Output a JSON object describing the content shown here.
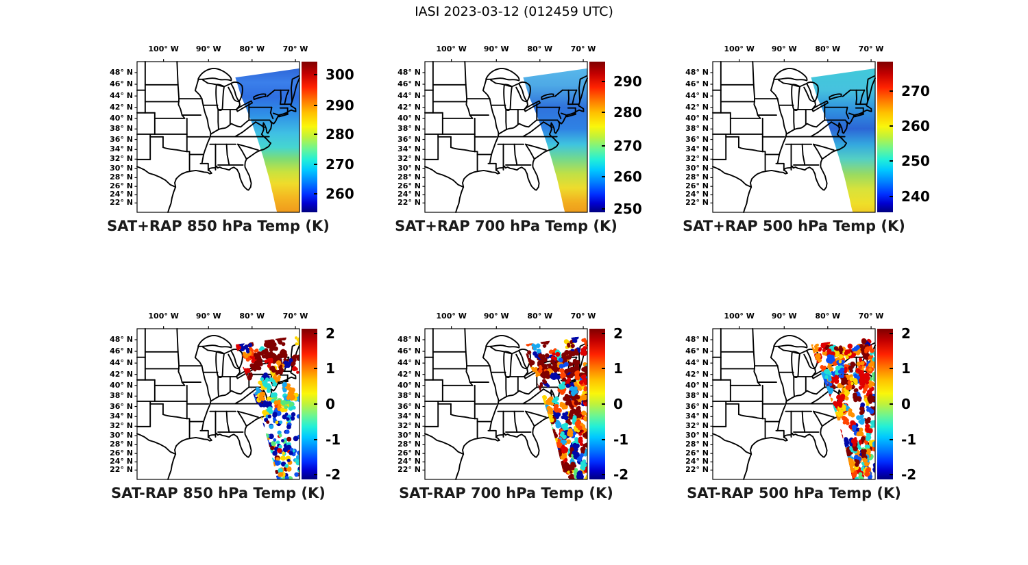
{
  "figure": {
    "title": "IASI 2023-03-12 (012459 UTC)",
    "background": "#ffffff"
  },
  "axes": {
    "lon_labels": [
      "100° W",
      "90° W",
      "80° W",
      "70° W"
    ],
    "lon_fracs": [
      0.163,
      0.44,
      0.708,
      0.975
    ],
    "lat_labels": [
      "48° N",
      "46° N",
      "44° N",
      "42° N",
      "40° N",
      "38° N",
      "36° N",
      "34° N",
      "32° N",
      "30° N",
      "28° N",
      "26° N",
      "24° N",
      "22° N"
    ],
    "lat_fracs": [
      0.073,
      0.15,
      0.228,
      0.303,
      0.376,
      0.447,
      0.516,
      0.583,
      0.647,
      0.71,
      0.77,
      0.828,
      0.884,
      0.938
    ]
  },
  "panels": [
    {
      "title": "SAT+RAP 850 hPa Temp (K)",
      "kind": "swath",
      "row": 0,
      "col": 0,
      "cb_ticks": [
        "300",
        "290",
        "280",
        "270",
        "260"
      ],
      "cb_fracs": [
        0.085,
        0.29,
        0.48,
        0.68,
        0.875
      ],
      "gradient": [
        [
          0,
          "#2E66D8"
        ],
        [
          0.1,
          "#3B7FEA"
        ],
        [
          0.2,
          "#2F6FE2"
        ],
        [
          0.32,
          "#2F8FE6"
        ],
        [
          0.45,
          "#3FBFE4"
        ],
        [
          0.55,
          "#46D6CF"
        ],
        [
          0.63,
          "#7FDC74"
        ],
        [
          0.72,
          "#C9E23E"
        ],
        [
          0.8,
          "#F0DC2B"
        ],
        [
          0.9,
          "#F4B621"
        ],
        [
          1,
          "#F09A1C"
        ]
      ]
    },
    {
      "title": "SAT+RAP 700 hPa Temp (K)",
      "kind": "swath",
      "row": 0,
      "col": 1,
      "cb_ticks": [
        "290",
        "280",
        "270",
        "260",
        "250"
      ],
      "cb_fracs": [
        0.13,
        0.335,
        0.56,
        0.765,
        0.975
      ],
      "gradient": [
        [
          0,
          "#58B8EA"
        ],
        [
          0.12,
          "#4EA9E6"
        ],
        [
          0.27,
          "#2F72DC"
        ],
        [
          0.42,
          "#2F82E4"
        ],
        [
          0.53,
          "#3FC4DF"
        ],
        [
          0.63,
          "#74D98C"
        ],
        [
          0.73,
          "#BFE047"
        ],
        [
          0.83,
          "#EDDC2D"
        ],
        [
          0.93,
          "#F2AE1F"
        ],
        [
          1,
          "#EE9C1B"
        ]
      ]
    },
    {
      "title": "SAT+RAP 500 hPa Temp (K)",
      "kind": "swath",
      "row": 0,
      "col": 2,
      "cb_ticks": [
        "270",
        "260",
        "250",
        "240"
      ],
      "cb_fracs": [
        0.195,
        0.425,
        0.66,
        0.895
      ],
      "gradient": [
        [
          0,
          "#41C9DA"
        ],
        [
          0.15,
          "#46C2DE"
        ],
        [
          0.3,
          "#2F8FDF"
        ],
        [
          0.42,
          "#2C66D6"
        ],
        [
          0.53,
          "#34A8DF"
        ],
        [
          0.63,
          "#54CFC4"
        ],
        [
          0.74,
          "#9BDB5F"
        ],
        [
          0.84,
          "#D8E23B"
        ],
        [
          0.94,
          "#EFDF29"
        ],
        [
          1,
          "#F0CC24"
        ]
      ]
    },
    {
      "title": "SAT-RAP 850 hPa Temp (K)",
      "kind": "scatter",
      "row": 1,
      "col": 0,
      "seed": 11,
      "cb_ticks": [
        "2",
        "1",
        "0",
        "-1",
        "-2"
      ],
      "cb_fracs": [
        0.03,
        0.265,
        0.5,
        0.735,
        0.97
      ],
      "bands": [
        {
          "v": [
            0,
            0.24
          ],
          "n": 300,
          "cluster": true,
          "weights": {
            "darkred": 0.58,
            "red": 0.14,
            "orangered": 0.07,
            "orange": 0.06,
            "yellow": 0.04,
            "cyan": 0.04,
            "skyblue": 0.02,
            "blue": 0.02,
            "darkblue": 0.03
          }
        },
        {
          "v": [
            0.24,
            0.52
          ],
          "n": 220,
          "cluster": true,
          "uBias": 1.3,
          "weights": {
            "darkred": 0.18,
            "red": 0.07,
            "orangered": 0.05,
            "orange": 0.1,
            "yellow": 0.12,
            "green": 0.05,
            "cyan": 0.14,
            "skyblue": 0.06,
            "blue": 0.1,
            "darkblue": 0.13
          }
        },
        {
          "v": [
            0.52,
            1
          ],
          "n": 120,
          "cluster": false,
          "weights": {
            "darkblue": 0.26,
            "blue": 0.17,
            "skyblue": 0.08,
            "cyan": 0.13,
            "green": 0.04,
            "yellow": 0.12,
            "orange": 0.1,
            "red": 0.04,
            "darkred": 0.06
          }
        }
      ]
    },
    {
      "title": "SAT-RAP 700 hPa Temp (K)",
      "kind": "scatter",
      "row": 1,
      "col": 1,
      "seed": 23,
      "cb_ticks": [
        "2",
        "1",
        "0",
        "-1",
        "-2"
      ],
      "cb_fracs": [
        0.03,
        0.265,
        0.5,
        0.735,
        0.97
      ],
      "bands": [
        {
          "v": [
            0,
            0.25
          ],
          "n": 300,
          "cluster": true,
          "weights": {
            "darkred": 0.46,
            "red": 0.12,
            "orangered": 0.1,
            "orange": 0.1,
            "yellow": 0.05,
            "cyan": 0.06,
            "skyblue": 0.03,
            "blue": 0.04,
            "darkblue": 0.04
          }
        },
        {
          "v": [
            0.25,
            1
          ],
          "n": 800,
          "cluster": true,
          "weights": {
            "darkred": 0.24,
            "red": 0.1,
            "orangered": 0.08,
            "orange": 0.12,
            "yellow": 0.08,
            "green": 0.04,
            "cyan": 0.11,
            "skyblue": 0.06,
            "blue": 0.09,
            "darkblue": 0.08
          }
        }
      ]
    },
    {
      "title": "SAT-RAP 500 hPa Temp (K)",
      "kind": "scatter",
      "row": 1,
      "col": 2,
      "seed": 37,
      "cb_ticks": [
        "2",
        "1",
        "0",
        "-1",
        "-2"
      ],
      "cb_fracs": [
        0.03,
        0.265,
        0.5,
        0.735,
        0.97
      ],
      "bands": [
        {
          "v": [
            0,
            0.2
          ],
          "n": 280,
          "cluster": true,
          "weights": {
            "orange": 0.28,
            "orangered": 0.2,
            "red": 0.16,
            "darkred": 0.14,
            "yellow": 0.08,
            "cyan": 0.04,
            "skyblue": 0.03,
            "blue": 0.04,
            "darkblue": 0.03
          }
        },
        {
          "v": [
            0.2,
            1
          ],
          "n": 820,
          "cluster": true,
          "weights": {
            "darkred": 0.18,
            "red": 0.14,
            "orangered": 0.12,
            "orange": 0.16,
            "yellow": 0.08,
            "green": 0.03,
            "cyan": 0.09,
            "skyblue": 0.05,
            "blue": 0.08,
            "darkblue": 0.07
          }
        }
      ]
    }
  ],
  "chart_data": {
    "type": "heatmap",
    "subtype": "satellite-swath-temperature-maps",
    "figure_title": "IASI 2023-03-12 (012459 UTC)",
    "instrument": "IASI",
    "date": "2023-03-12",
    "time_utc": "012459",
    "colormap": "jet",
    "layout": "2 rows x 3 columns of US maps, each with its own vertical colorbar on the right",
    "map_lon_ticks_degW": [
      100,
      90,
      80,
      70
    ],
    "map_lat_ticks_degN": [
      48,
      46,
      44,
      42,
      40,
      38,
      36,
      34,
      32,
      30,
      28,
      26,
      24,
      22
    ],
    "swath_coverage": "Diagonal satellite swath over the northeastern US and western Atlantic, from Great Lakes/New England southward offshore",
    "panels": [
      {
        "title": "SAT+RAP 850 hPa Temp (K)",
        "level_hPa": 850,
        "field": "temperature_K",
        "colorbar_ticks_K": [
          300,
          290,
          280,
          270,
          260
        ],
        "approx_caxis_K": [
          256,
          304
        ],
        "approx_temp_by_lat": [
          {
            "lat_N": 48,
            "K": 264
          },
          {
            "lat_N": 44,
            "K": 265
          },
          {
            "lat_N": 40,
            "K": 268
          },
          {
            "lat_N": 36,
            "K": 274
          },
          {
            "lat_N": 32,
            "K": 280
          },
          {
            "lat_N": 28,
            "K": 286
          },
          {
            "lat_N": 24,
            "K": 291
          }
        ]
      },
      {
        "title": "SAT+RAP 700 hPa Temp (K)",
        "level_hPa": 700,
        "field": "temperature_K",
        "colorbar_ticks_K": [
          290,
          280,
          270,
          260,
          250
        ],
        "approx_caxis_K": [
          249,
          293
        ],
        "approx_temp_by_lat": [
          {
            "lat_N": 48,
            "K": 266
          },
          {
            "lat_N": 44,
            "K": 264
          },
          {
            "lat_N": 40,
            "K": 262
          },
          {
            "lat_N": 36,
            "K": 267
          },
          {
            "lat_N": 32,
            "K": 273
          },
          {
            "lat_N": 28,
            "K": 279
          },
          {
            "lat_N": 24,
            "K": 284
          }
        ]
      },
      {
        "title": "SAT+RAP 500 hPa Temp (K)",
        "level_hPa": 500,
        "field": "temperature_K",
        "colorbar_ticks_K": [
          270,
          260,
          250,
          240
        ],
        "approx_caxis_K": [
          235,
          277
        ],
        "approx_temp_by_lat": [
          {
            "lat_N": 48,
            "K": 252
          },
          {
            "lat_N": 44,
            "K": 250
          },
          {
            "lat_N": 40,
            "K": 247
          },
          {
            "lat_N": 36,
            "K": 252
          },
          {
            "lat_N": 32,
            "K": 257
          },
          {
            "lat_N": 28,
            "K": 261
          },
          {
            "lat_N": 24,
            "K": 263
          }
        ]
      },
      {
        "title": "SAT-RAP 850 hPa Temp (K)",
        "level_hPa": 850,
        "field": "temperature_difference_K",
        "colorbar_ticks_K": [
          2,
          1,
          0,
          -1,
          -2
        ],
        "caxis_K": [
          -2,
          2
        ],
        "pattern": "Sa­turated +2 K (dark red) band north of ~44N; mixed +/-1 to 2 K speckle over the Mid-Atlantic coast; sparse mostly negative (blue) points offshore to the south"
      },
      {
        "title": "SAT-RAP 700 hPa Temp (K)",
        "level_hPa": 700,
        "field": "temperature_difference_K",
        "colorbar_ticks_K": [
          2,
          1,
          0,
          -1,
          -2
        ],
        "caxis_K": [
          -2,
          2
        ],
        "pattern": "Dense noisy +/-2 K speckle across the whole swath with large saturated +2 K patches"
      },
      {
        "title": "SAT-RAP 500 hPa Temp (K)",
        "level_hPa": 500,
        "field": "temperature_difference_K",
        "colorbar_ticks_K": [
          2,
          1,
          0,
          -1,
          -2
        ],
        "caxis_K": [
          -2,
          2
        ],
        "pattern": "Dense speckle dominated by +1 to +2 K (orange/red) with embedded -1 to -2 K (blue) streaks"
      }
    ]
  }
}
